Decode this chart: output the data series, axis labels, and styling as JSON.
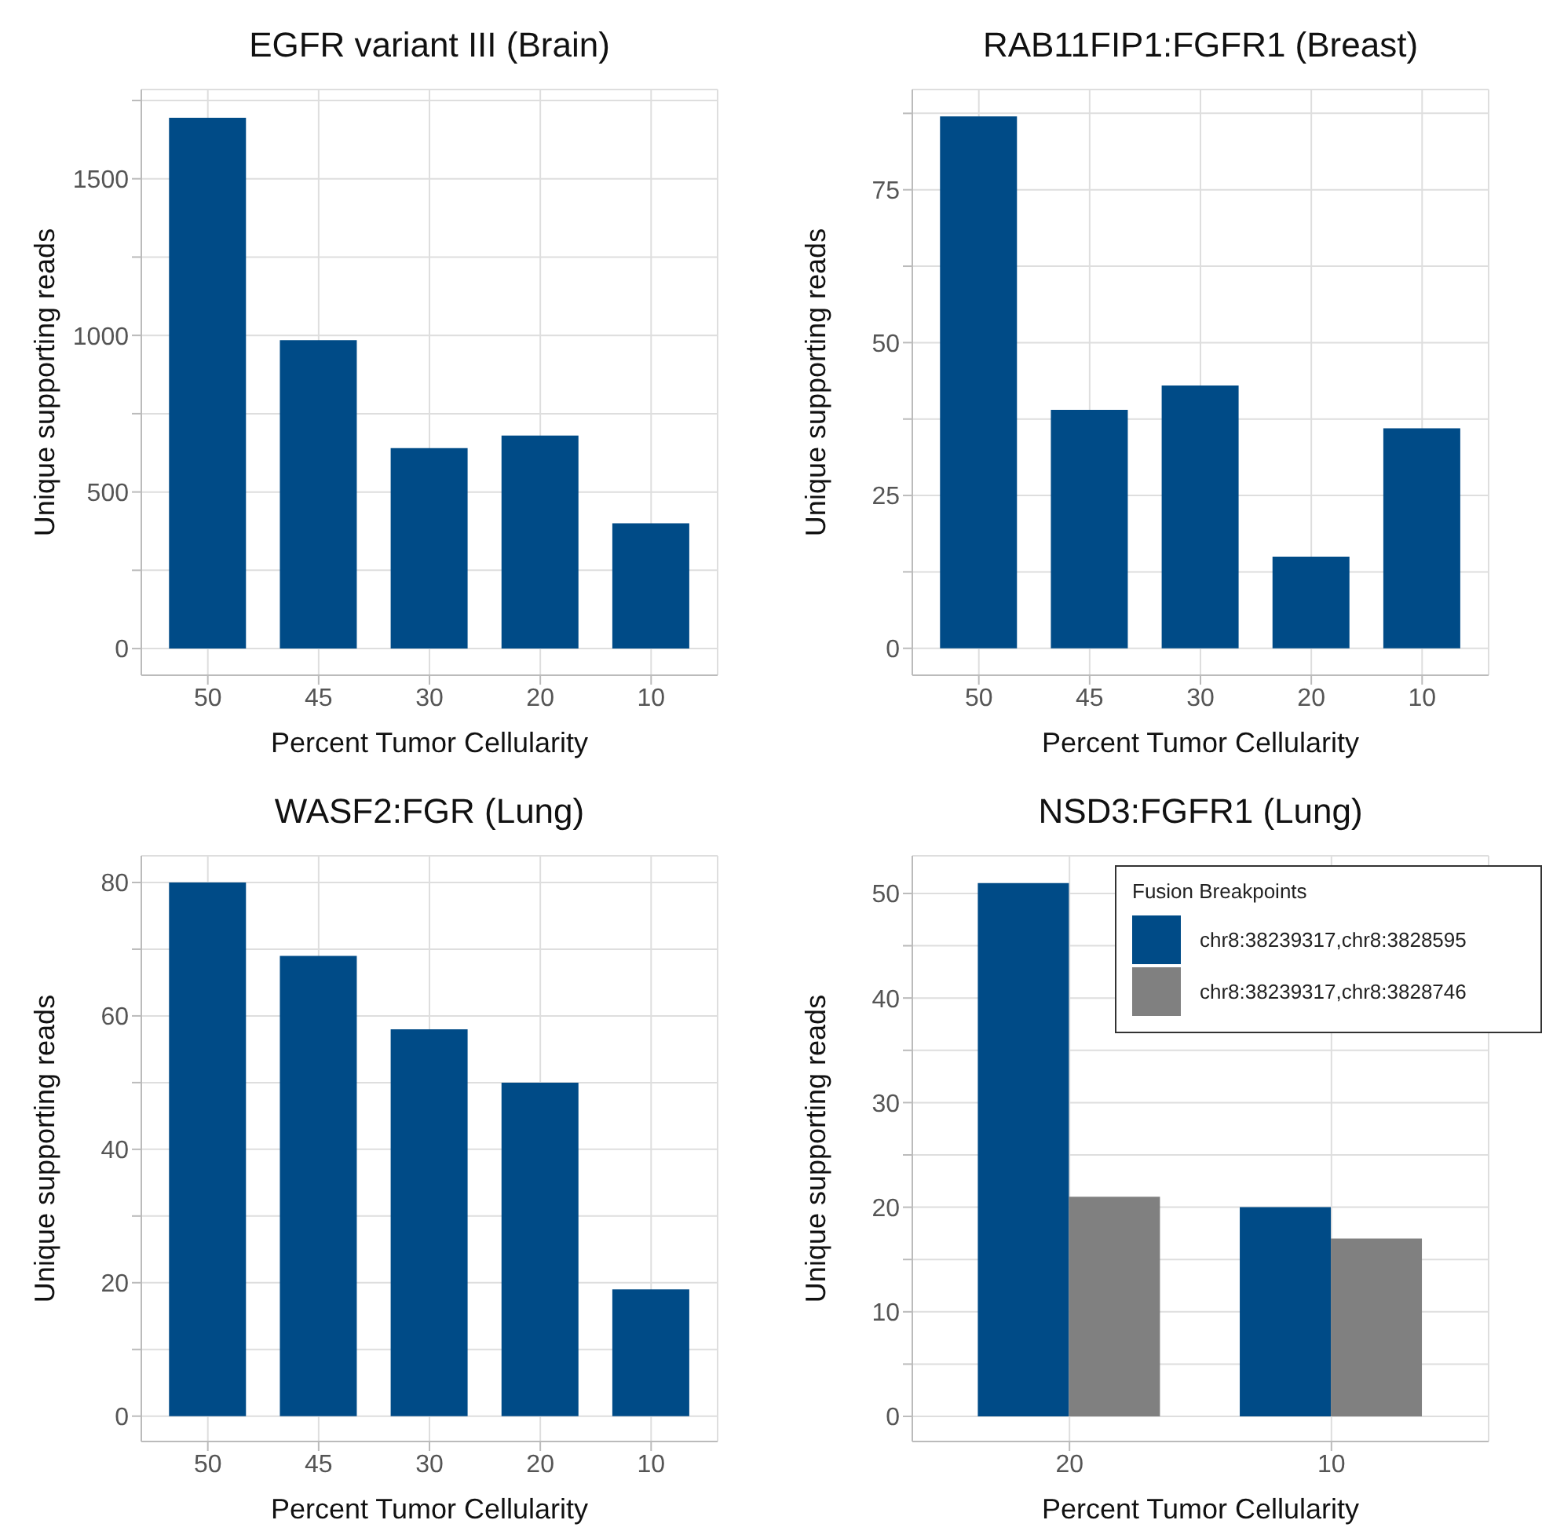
{
  "chart_data": [
    {
      "type": "bar",
      "title": "EGFR variant III (Brain)",
      "xlabel": "Percent Tumor Cellularity",
      "ylabel": "Unique supporting reads",
      "categories": [
        "50",
        "45",
        "30",
        "20",
        "10"
      ],
      "values": [
        1695,
        985,
        640,
        680,
        400
      ],
      "color": "#004b87",
      "ylim": [
        -85,
        1785
      ],
      "yticks": [
        0,
        {
          "value": 250,
          "label": null
        },
        500,
        {
          "value": 750,
          "label": null
        },
        1000,
        {
          "value": 1250,
          "label": null
        },
        1500,
        {
          "value": 1750,
          "label": null
        }
      ],
      "grid": true,
      "legend": false
    },
    {
      "type": "bar",
      "title": "RAB11FIP1:FGFR1 (Breast)",
      "xlabel": "Percent Tumor Cellularity",
      "ylabel": "Unique supporting reads",
      "categories": [
        "50",
        "45",
        "30",
        "20",
        "10"
      ],
      "values": [
        87,
        39,
        43,
        15,
        36
      ],
      "color": "#004b87",
      "ylim": [
        -4.4,
        91.4
      ],
      "yticks": [
        0,
        {
          "value": 12.5,
          "label": null
        },
        25,
        {
          "value": 37.5,
          "label": null
        },
        50,
        {
          "value": 62.5,
          "label": null
        },
        75,
        {
          "value": 87.5,
          "label": null
        }
      ],
      "grid": true,
      "legend": false
    },
    {
      "type": "bar",
      "title": "WASF2:FGR (Lung)",
      "xlabel": "Percent Tumor Cellularity",
      "ylabel": "Unique supporting reads",
      "categories": [
        "50",
        "45",
        "30",
        "20",
        "10"
      ],
      "values": [
        80,
        69,
        58,
        50,
        19
      ],
      "color": "#004b87",
      "ylim": [
        -3.8,
        84
      ],
      "yticks": [
        0,
        {
          "value": 10,
          "label": null
        },
        20,
        {
          "value": 30,
          "label": null
        },
        40,
        {
          "value": 50,
          "label": null
        },
        60,
        {
          "value": 70,
          "label": null
        },
        80
      ],
      "grid": true,
      "legend": false
    },
    {
      "type": "bar",
      "title": "NSD3:FGFR1 (Lung)",
      "xlabel": "Percent Tumor Cellularity",
      "ylabel": "Unique supporting reads",
      "categories": [
        "20",
        "10"
      ],
      "legend_title": "Fusion Breakpoints",
      "series": [
        {
          "name": "chr8:38239317,chr8:3828595",
          "color": "#004b87",
          "values": [
            51,
            20
          ]
        },
        {
          "name": "chr8:38239317,chr8:3828746",
          "color": "#808080",
          "values": [
            21,
            17
          ]
        }
      ],
      "ylim": [
        -2.4,
        53.6
      ],
      "yticks": [
        0,
        {
          "value": 5,
          "label": null
        },
        10,
        {
          "value": 15,
          "label": null
        },
        20,
        {
          "value": 25,
          "label": null
        },
        30,
        {
          "value": 35,
          "label": null
        },
        40,
        {
          "value": 45,
          "label": null
        },
        50
      ],
      "grid": true,
      "legend": "top right"
    }
  ]
}
